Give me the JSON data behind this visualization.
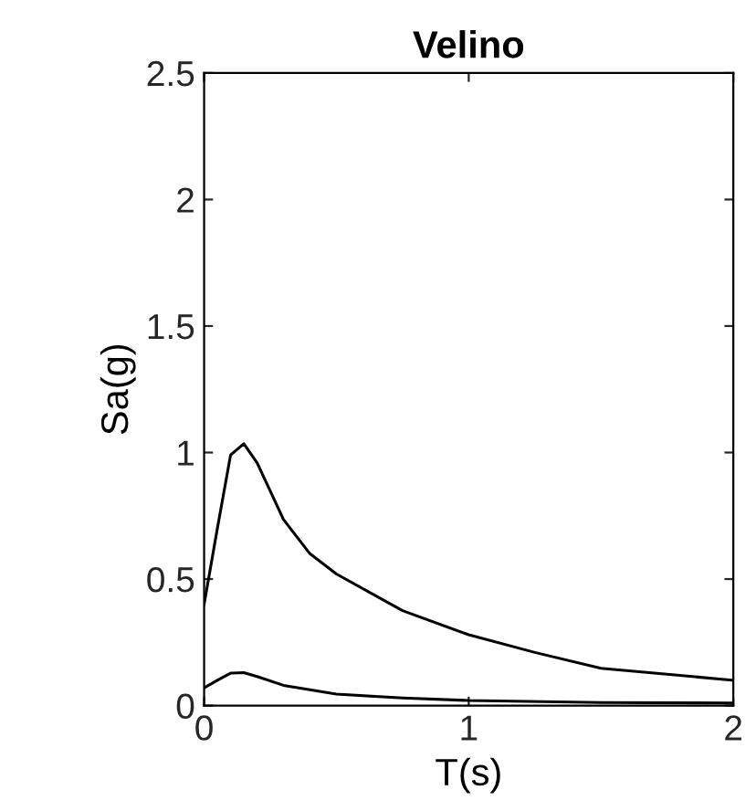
{
  "chart_data": {
    "type": "line",
    "title": "Velino",
    "xlabel": "T(s)",
    "ylabel": "Sa(g)",
    "xlim": [
      0,
      2
    ],
    "ylim": [
      0,
      2.5
    ],
    "xticks": [
      0,
      1,
      2
    ],
    "yticks": [
      0,
      0.5,
      1,
      1.5,
      2,
      2.5
    ],
    "grid": false,
    "legend": false,
    "series": [
      {
        "color": "#000000",
        "x": [
          0,
          0.05,
          0.1,
          0.15,
          0.2,
          0.3,
          0.4,
          0.5,
          0.75,
          1,
          1.25,
          1.5,
          2
        ],
        "values": [
          0.4,
          0.7,
          0.99,
          1.035,
          0.96,
          0.735,
          0.6,
          0.52,
          0.375,
          0.28,
          0.21,
          0.147,
          0.1
        ]
      },
      {
        "color": "#000000",
        "x": [
          0,
          0.05,
          0.1,
          0.15,
          0.2,
          0.3,
          0.5,
          0.75,
          1,
          1.5,
          2
        ],
        "values": [
          0.07,
          0.1,
          0.128,
          0.13,
          0.115,
          0.08,
          0.045,
          0.03,
          0.02,
          0.012,
          0.01
        ]
      }
    ]
  }
}
